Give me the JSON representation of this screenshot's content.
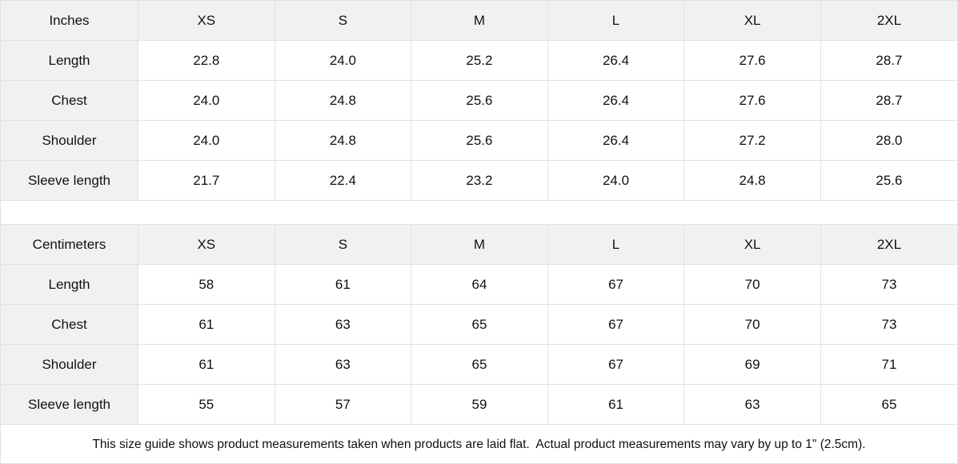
{
  "colors": {
    "header_bg": "#f1f1f1",
    "cell_bg": "#ffffff",
    "border": "#e3e3e3",
    "text": "#111111"
  },
  "tables": [
    {
      "id": "inches",
      "unit_label": "Inches",
      "columns": [
        "XS",
        "S",
        "M",
        "L",
        "XL",
        "2XL"
      ],
      "rows": [
        {
          "label": "Length",
          "values": [
            "22.8",
            "24.0",
            "25.2",
            "26.4",
            "27.6",
            "28.7"
          ]
        },
        {
          "label": "Chest",
          "values": [
            "24.0",
            "24.8",
            "25.6",
            "26.4",
            "27.6",
            "28.7"
          ]
        },
        {
          "label": "Shoulder",
          "values": [
            "24.0",
            "24.8",
            "25.6",
            "26.4",
            "27.2",
            "28.0"
          ]
        },
        {
          "label": "Sleeve length",
          "values": [
            "21.7",
            "22.4",
            "23.2",
            "24.0",
            "24.8",
            "25.6"
          ]
        }
      ]
    },
    {
      "id": "centimeters",
      "unit_label": "Centimeters",
      "columns": [
        "XS",
        "S",
        "M",
        "L",
        "XL",
        "2XL"
      ],
      "rows": [
        {
          "label": "Length",
          "values": [
            "58",
            "61",
            "64",
            "67",
            "70",
            "73"
          ]
        },
        {
          "label": "Chest",
          "values": [
            "61",
            "63",
            "65",
            "67",
            "70",
            "73"
          ]
        },
        {
          "label": "Shoulder",
          "values": [
            "61",
            "63",
            "65",
            "67",
            "69",
            "71"
          ]
        },
        {
          "label": "Sleeve length",
          "values": [
            "55",
            "57",
            "59",
            "61",
            "63",
            "65"
          ]
        }
      ]
    }
  ],
  "footer": {
    "note": "This size guide shows product measurements taken when products are laid flat.  Actual product measurements may vary by up to 1\" (2.5cm)."
  }
}
